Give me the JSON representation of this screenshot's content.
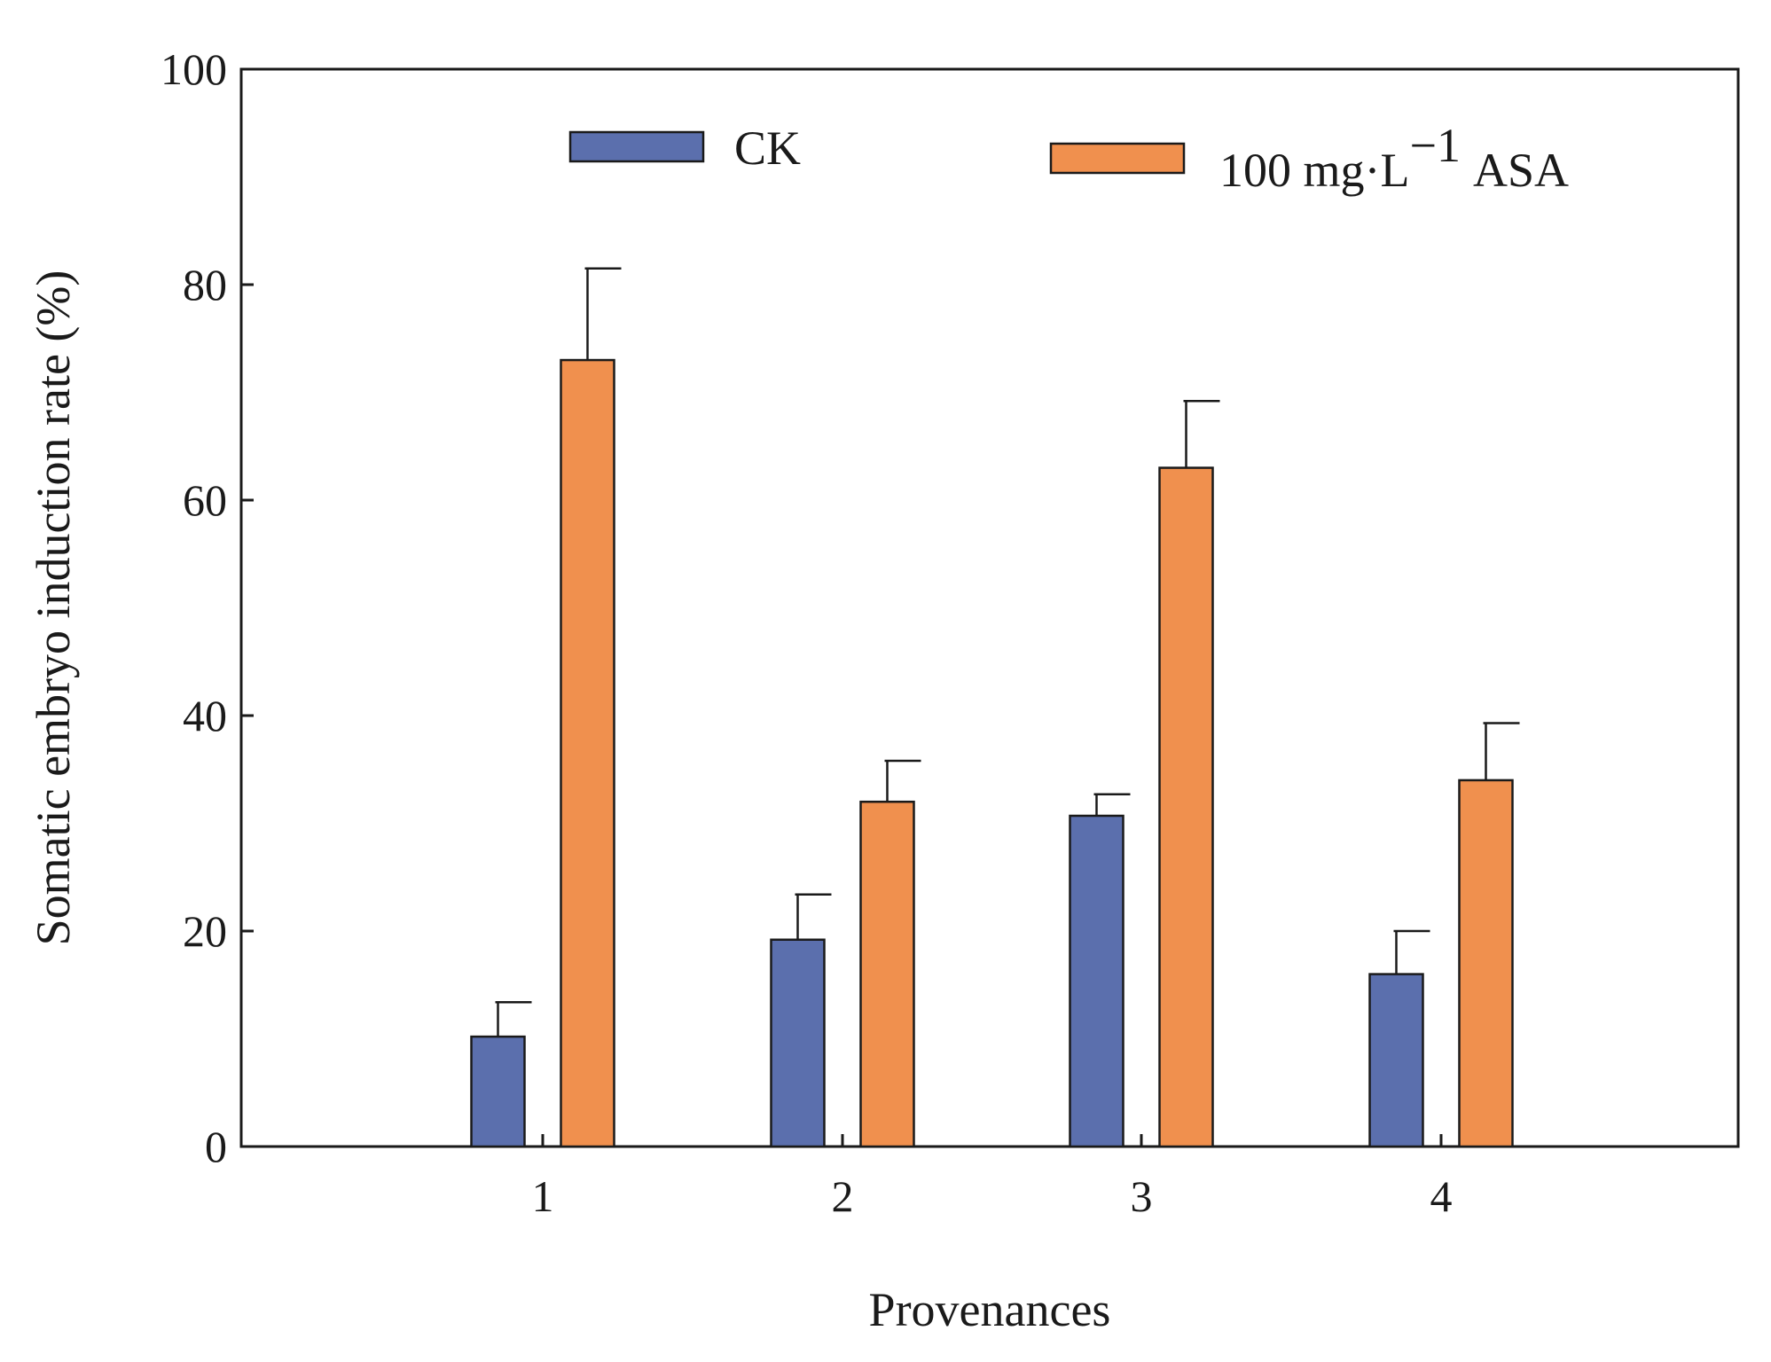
{
  "chart_data": {
    "type": "bar",
    "title": "",
    "xlabel": "Provenances",
    "ylabel": "Somatic embryo induction rate (%)",
    "categories": [
      "1",
      "2",
      "3",
      "4"
    ],
    "ylim": [
      0,
      100
    ],
    "yticks": [
      0,
      20,
      40,
      60,
      80,
      100
    ],
    "grid": false,
    "legend": {
      "position": "top",
      "entries": [
        "CK",
        "100 mg·L",
        "−1",
        "ASA"
      ]
    },
    "series": [
      {
        "name": "CK",
        "color": "#5b6fad",
        "values": [
          10.2,
          19.2,
          30.7,
          16.0
        ],
        "errors": [
          3.2,
          4.2,
          2.0,
          4.0
        ]
      },
      {
        "name": "100 mg·L−1 ASA",
        "color": "#f0904e",
        "values": [
          73.0,
          32.0,
          63.0,
          34.0
        ],
        "errors": [
          8.5,
          3.8,
          6.2,
          5.3
        ]
      }
    ]
  }
}
